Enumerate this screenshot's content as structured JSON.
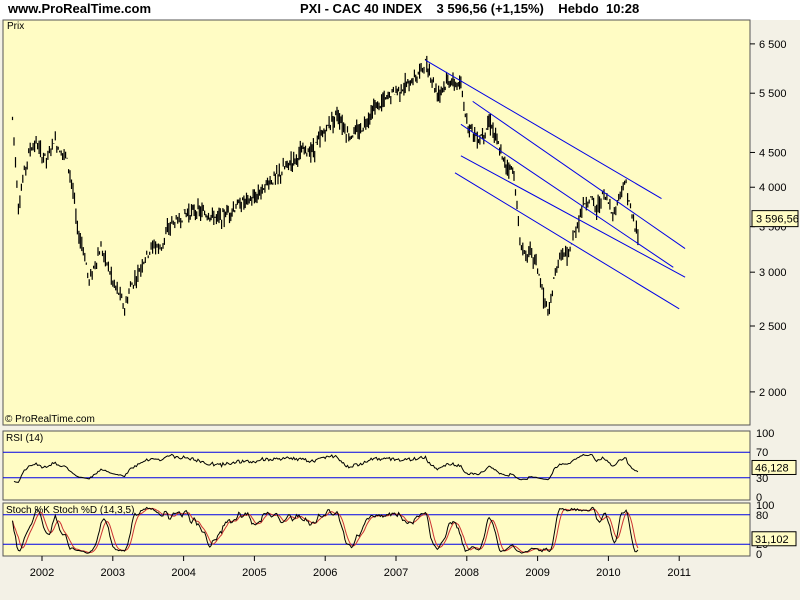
{
  "header": {
    "site": "www.ProRealTime.com",
    "title": "PXI - CAC 40 INDEX    3 596,56 (+1,15%)    Hebdo  10:28"
  },
  "chart_data": [
    {
      "type": "line",
      "panel": "price",
      "title": "Prix",
      "watermark": "© ProRealTime.com",
      "xlabel": "",
      "ylabel": "",
      "x_tick_labels": [
        "2002",
        "2003",
        "2004",
        "2005",
        "2006",
        "2007",
        "2008",
        "2009",
        "2010",
        "2011"
      ],
      "y_ticks": [
        2000,
        2500,
        3000,
        3500,
        4000,
        4500,
        5500,
        6500
      ],
      "y_tick_labels": [
        "2 000",
        "2 500",
        "3 000",
        "3 500",
        "4 000",
        "4 500",
        "5 500",
        "6 500"
      ],
      "y_scale": "log",
      "last_value_label": "3 596,56",
      "last_value": 3596.56,
      "series": [
        {
          "values": [
            [
              "2001-08",
              5050
            ],
            [
              "2001-09",
              3750
            ],
            [
              "2001-10",
              4200
            ],
            [
              "2001-11",
              4550
            ],
            [
              "2001-12",
              4650
            ],
            [
              "2002-01",
              4450
            ],
            [
              "2002-02",
              4400
            ],
            [
              "2002-03",
              4700
            ],
            [
              "2002-04",
              4550
            ],
            [
              "2002-05",
              4450
            ],
            [
              "2002-06",
              4100
            ],
            [
              "2002-07",
              3450
            ],
            [
              "2002-08",
              3250
            ],
            [
              "2002-09",
              2900
            ],
            [
              "2002-10",
              3100
            ],
            [
              "2002-11",
              3250
            ],
            [
              "2002-12",
              3100
            ],
            [
              "2003-01",
              2900
            ],
            [
              "2003-02",
              2800
            ],
            [
              "2003-03",
              2650
            ],
            [
              "2003-04",
              2850
            ],
            [
              "2003-05",
              2950
            ],
            [
              "2003-06",
              3100
            ],
            [
              "2003-07",
              3200
            ],
            [
              "2003-08",
              3300
            ],
            [
              "2003-09",
              3250
            ],
            [
              "2003-10",
              3400
            ],
            [
              "2003-11",
              3550
            ],
            [
              "2003-12",
              3550
            ],
            [
              "2004-01",
              3650
            ],
            [
              "2004-03",
              3700
            ],
            [
              "2004-05",
              3650
            ],
            [
              "2004-07",
              3600
            ],
            [
              "2004-09",
              3700
            ],
            [
              "2004-11",
              3800
            ],
            [
              "2005-01",
              3850
            ],
            [
              "2005-03",
              4050
            ],
            [
              "2005-05",
              4150
            ],
            [
              "2005-07",
              4350
            ],
            [
              "2005-09",
              4500
            ],
            [
              "2005-11",
              4550
            ],
            [
              "2006-01",
              4850
            ],
            [
              "2006-03",
              5150
            ],
            [
              "2006-05",
              4750
            ],
            [
              "2006-07",
              4850
            ],
            [
              "2006-09",
              5200
            ],
            [
              "2006-11",
              5350
            ],
            [
              "2007-01",
              5550
            ],
            [
              "2007-03",
              5650
            ],
            [
              "2007-05",
              5900
            ],
            [
              "2007-06",
              6100
            ],
            [
              "2007-08",
              5500
            ],
            [
              "2007-10",
              5750
            ],
            [
              "2007-12",
              5600
            ],
            [
              "2008-01",
              5000
            ],
            [
              "2008-03",
              4700
            ],
            [
              "2008-05",
              5000
            ],
            [
              "2008-07",
              4400
            ],
            [
              "2008-09",
              4200
            ],
            [
              "2008-10",
              3300
            ],
            [
              "2008-11",
              3200
            ],
            [
              "2008-12",
              3200
            ],
            [
              "2009-01",
              3050
            ],
            [
              "2009-02",
              2750
            ],
            [
              "2009-03",
              2600
            ],
            [
              "2009-04",
              3000
            ],
            [
              "2009-05",
              3200
            ],
            [
              "2009-06",
              3150
            ],
            [
              "2009-07",
              3350
            ],
            [
              "2009-08",
              3600
            ],
            [
              "2009-09",
              3800
            ],
            [
              "2009-10",
              3850
            ],
            [
              "2009-11",
              3700
            ],
            [
              "2009-12",
              3900
            ],
            [
              "2010-01",
              3800
            ],
            [
              "2010-02",
              3650
            ],
            [
              "2010-03",
              3950
            ],
            [
              "2010-04",
              4050
            ],
            [
              "2010-05",
              3600
            ],
            [
              "2010-06",
              3400
            ],
            [
              "2010-06",
              3596.56
            ]
          ]
        }
      ]
    },
    {
      "type": "line",
      "panel": "rsi",
      "title": "RSI (14)",
      "y_ticks": [
        0,
        30,
        70,
        100
      ],
      "y_tick_labels": [
        "0",
        "30",
        "70",
        "100"
      ],
      "last_value_label": "46,128",
      "last_value": 46.128
    },
    {
      "type": "line",
      "panel": "stochastic",
      "title": "Stoch %K Stoch %D (14,3,5)",
      "y_ticks": [
        0,
        20,
        80,
        100
      ],
      "y_tick_labels": [
        "0",
        "20",
        "80",
        "100"
      ],
      "last_value_label": "31,102",
      "last_value": 31.102
    }
  ],
  "colors": {
    "background": "#FFFCC4",
    "price": "#000000",
    "channels": "#0000E6",
    "stoch_d": "#CC3333",
    "border": "#555555"
  }
}
